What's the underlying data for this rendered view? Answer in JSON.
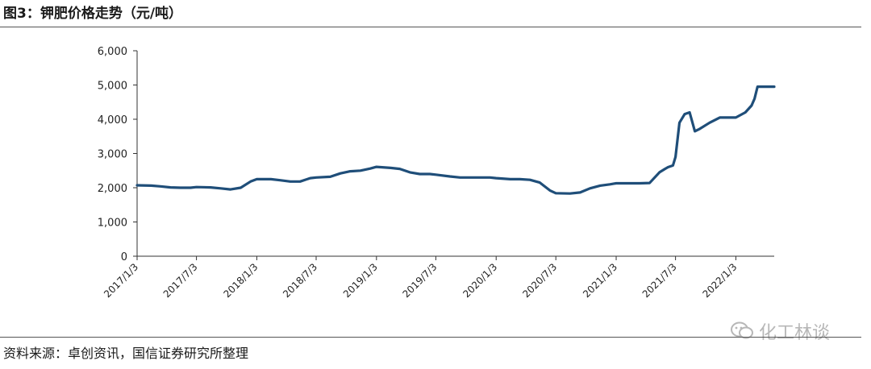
{
  "header": {
    "title": "图3：钾肥价格走势（元/吨）"
  },
  "footer": {
    "source": "资料来源：卓创资讯，国信证券研究所整理"
  },
  "watermark": {
    "text": "化工林谈",
    "icon": "wechat-icon"
  },
  "chart_data": {
    "type": "line",
    "title": "",
    "xlabel": "",
    "ylabel": "",
    "ylim": [
      0,
      6000
    ],
    "y_ticks": [
      0,
      1000,
      2000,
      3000,
      4000,
      5000,
      6000
    ],
    "y_tick_labels": [
      "0",
      "1,000",
      "2,000",
      "3,000",
      "4,000",
      "5,000",
      "6,000"
    ],
    "x_tick_labels": [
      "2017/1/3",
      "2017/7/3",
      "2018/1/3",
      "2018/7/3",
      "2019/1/3",
      "2019/7/3",
      "2020/1/3",
      "2020/7/3",
      "2021/1/3",
      "2021/7/3",
      "2022/1/3"
    ],
    "x_range": [
      "2017-01-03",
      "2022-04-30"
    ],
    "grid": false,
    "legend": "none",
    "color": "#1f4e79",
    "series": [
      {
        "x": [
          "2017-01-03",
          "2017-02-15",
          "2017-03-15",
          "2017-04-15",
          "2017-05-15",
          "2017-06-15",
          "2017-07-03",
          "2017-08-15",
          "2017-09-15",
          "2017-10-15",
          "2017-11-15",
          "2017-12-15",
          "2018-01-03",
          "2018-02-15",
          "2018-03-15",
          "2018-04-15",
          "2018-05-15",
          "2018-06-15",
          "2018-07-03",
          "2018-08-15",
          "2018-09-15",
          "2018-10-15",
          "2018-11-15",
          "2018-12-15",
          "2019-01-03",
          "2019-02-15",
          "2019-03-15",
          "2019-04-15",
          "2019-05-15",
          "2019-06-15",
          "2019-07-03",
          "2019-08-15",
          "2019-09-15",
          "2019-10-15",
          "2019-11-15",
          "2019-12-15",
          "2020-01-03",
          "2020-02-15",
          "2020-03-15",
          "2020-04-15",
          "2020-05-15",
          "2020-06-15",
          "2020-07-03",
          "2020-08-15",
          "2020-09-15",
          "2020-10-15",
          "2020-11-15",
          "2020-12-15",
          "2021-01-03",
          "2021-02-15",
          "2021-03-15",
          "2021-04-15",
          "2021-05-15",
          "2021-06-01",
          "2021-06-10",
          "2021-06-25",
          "2021-07-03",
          "2021-07-15",
          "2021-07-31",
          "2021-08-15",
          "2021-08-31",
          "2021-09-15",
          "2021-10-15",
          "2021-11-15",
          "2021-12-15",
          "2022-01-03",
          "2022-02-01",
          "2022-02-20",
          "2022-03-01",
          "2022-03-10",
          "2022-03-20",
          "2022-04-30"
        ],
        "values": [
          2070,
          2060,
          2040,
          2010,
          2000,
          2000,
          2020,
          2010,
          1980,
          1950,
          2000,
          2180,
          2250,
          2250,
          2220,
          2180,
          2180,
          2280,
          2300,
          2320,
          2420,
          2480,
          2500,
          2560,
          2610,
          2580,
          2550,
          2450,
          2400,
          2400,
          2380,
          2330,
          2300,
          2300,
          2300,
          2300,
          2280,
          2250,
          2250,
          2230,
          2150,
          1920,
          1840,
          1830,
          1860,
          1980,
          2060,
          2100,
          2130,
          2130,
          2130,
          2140,
          2450,
          2550,
          2600,
          2650,
          2900,
          3900,
          4150,
          4200,
          3650,
          3720,
          3900,
          4050,
          4050,
          4050,
          4200,
          4400,
          4600,
          4950,
          4950,
          4950
        ]
      }
    ]
  }
}
